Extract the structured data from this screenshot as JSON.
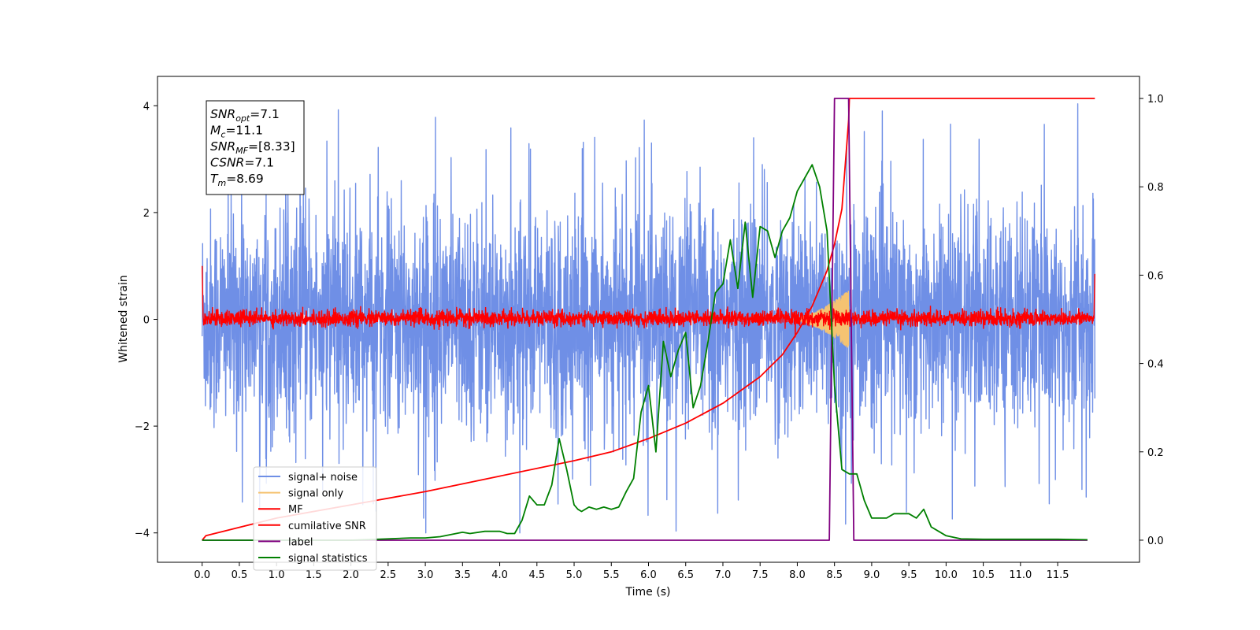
{
  "chart_data": {
    "type": "line",
    "xlabel": "Time (s)",
    "ylabel": "Whitened strain",
    "xlim": [
      -0.6,
      12.6
    ],
    "ylim": [
      -4.55,
      4.55
    ],
    "y2lim": [
      -0.05,
      1.05
    ],
    "x_ticks": [
      0.0,
      0.5,
      1.0,
      1.5,
      2.0,
      2.5,
      3.0,
      3.5,
      4.0,
      4.5,
      5.0,
      5.5,
      6.0,
      6.5,
      7.0,
      7.5,
      8.0,
      8.5,
      9.0,
      9.5,
      10.0,
      10.5,
      11.0,
      11.5
    ],
    "x_tick_labels": [
      "0.0",
      "0.5",
      "1.0",
      "1.5",
      "2.0",
      "2.5",
      "3.0",
      "3.5",
      "4.0",
      "4.5",
      "5.0",
      "5.5",
      "6.0",
      "6.5",
      "7.0",
      "7.5",
      "8.0",
      "8.5",
      "9.0",
      "9.5",
      "10.0",
      "10.5",
      "11.0",
      "11.5"
    ],
    "y_ticks": [
      -4,
      -2,
      0,
      2,
      4
    ],
    "y_tick_labels": [
      "−4",
      "−2",
      "0",
      "2",
      "4"
    ],
    "y2_ticks": [
      0.0,
      0.2,
      0.4,
      0.6,
      0.8,
      1.0
    ],
    "y2_tick_labels": [
      "0.0",
      "0.2",
      "0.4",
      "0.6",
      "0.8",
      "1.0"
    ],
    "grid": false,
    "legend_position": "lower-left",
    "info_box": [
      {
        "base": "SNR",
        "sub": "opt",
        "value": "=7.1"
      },
      {
        "base": "M",
        "sub": "c",
        "value": "=11.1"
      },
      {
        "base": "SNR",
        "sub": "MF",
        "value": "=[8.33]"
      },
      {
        "base": "CSNR",
        "sub": "",
        "value": "=7.1"
      },
      {
        "base": "T",
        "sub": "m",
        "value": "=8.69"
      }
    ],
    "series": [
      {
        "name": "signal+ noise",
        "axis": "left",
        "color": "#6f8fe6",
        "style": "noise",
        "x_range": [
          0.0,
          12.0
        ],
        "envelope_typical": [
          -2.3,
          2.3
        ],
        "extremes": [
          -4.0,
          4.1
        ]
      },
      {
        "name": "signal only",
        "axis": "left",
        "color": "#f5c372",
        "style": "chirp",
        "x_range": [
          7.9,
          8.69
        ],
        "peak_amplitude": 0.55
      },
      {
        "name": "MF",
        "axis": "left",
        "color": "#ff0000",
        "style": "noise",
        "x_range": [
          0.0,
          12.0
        ],
        "envelope_typical": [
          -0.15,
          0.2
        ],
        "edge_values": [
          1.0,
          0.85
        ]
      },
      {
        "name": "cumilative SNR",
        "axis": "right",
        "color": "#ff0000",
        "style": "line",
        "x": [
          0.0,
          0.05,
          1.0,
          2.0,
          3.0,
          4.0,
          5.0,
          5.5,
          6.0,
          6.5,
          7.0,
          7.5,
          7.8,
          8.0,
          8.2,
          8.4,
          8.5,
          8.6,
          8.69,
          8.7,
          12.0
        ],
        "y": [
          0.0,
          0.01,
          0.05,
          0.08,
          0.11,
          0.145,
          0.18,
          0.2,
          0.23,
          0.265,
          0.31,
          0.37,
          0.42,
          0.47,
          0.53,
          0.61,
          0.67,
          0.75,
          0.95,
          1.0,
          1.0
        ]
      },
      {
        "name": "label",
        "axis": "right",
        "color": "#800080",
        "style": "line",
        "x": [
          0.0,
          8.43,
          8.5,
          8.69,
          8.76,
          11.9
        ],
        "y": [
          0.0,
          0.0,
          1.0,
          1.0,
          0.0,
          0.0
        ]
      },
      {
        "name": "signal statistics",
        "axis": "right",
        "color": "#008000",
        "style": "line",
        "x": [
          0.0,
          0.5,
          1.0,
          1.5,
          2.0,
          2.5,
          2.8,
          3.0,
          3.2,
          3.5,
          3.6,
          3.8,
          4.0,
          4.1,
          4.2,
          4.3,
          4.4,
          4.5,
          4.6,
          4.7,
          4.8,
          4.9,
          5.0,
          5.05,
          5.1,
          5.2,
          5.3,
          5.4,
          5.5,
          5.6,
          5.7,
          5.8,
          5.9,
          6.0,
          6.1,
          6.2,
          6.3,
          6.4,
          6.5,
          6.6,
          6.7,
          6.8,
          6.9,
          7.0,
          7.1,
          7.2,
          7.3,
          7.4,
          7.5,
          7.6,
          7.7,
          7.8,
          7.9,
          8.0,
          8.1,
          8.2,
          8.3,
          8.4,
          8.5,
          8.6,
          8.7,
          8.8,
          8.9,
          9.0,
          9.1,
          9.2,
          9.3,
          9.4,
          9.5,
          9.6,
          9.7,
          9.8,
          9.9,
          10.0,
          10.2,
          10.5,
          11.0,
          11.5,
          11.9
        ],
        "y": [
          0.0,
          0.0,
          0.0,
          0.0,
          0.0,
          0.003,
          0.005,
          0.005,
          0.008,
          0.018,
          0.015,
          0.02,
          0.02,
          0.015,
          0.015,
          0.045,
          0.1,
          0.08,
          0.08,
          0.125,
          0.23,
          0.16,
          0.08,
          0.07,
          0.065,
          0.075,
          0.07,
          0.075,
          0.07,
          0.075,
          0.11,
          0.14,
          0.29,
          0.35,
          0.2,
          0.45,
          0.37,
          0.43,
          0.47,
          0.3,
          0.35,
          0.45,
          0.56,
          0.58,
          0.68,
          0.57,
          0.72,
          0.55,
          0.71,
          0.7,
          0.64,
          0.7,
          0.73,
          0.79,
          0.82,
          0.85,
          0.8,
          0.7,
          0.35,
          0.16,
          0.15,
          0.15,
          0.09,
          0.05,
          0.05,
          0.05,
          0.06,
          0.06,
          0.06,
          0.05,
          0.07,
          0.03,
          0.02,
          0.01,
          0.003,
          0.002,
          0.002,
          0.002,
          0.001
        ]
      }
    ]
  }
}
